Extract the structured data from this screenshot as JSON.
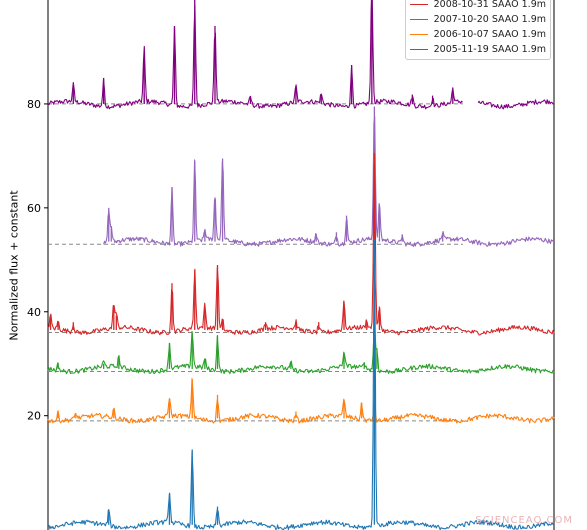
{
  "chart_data": {
    "type": "line",
    "title": "",
    "xlabel": "",
    "ylabel": "Normalized flux + constant",
    "ylim": [
      -2,
      100
    ],
    "yticks": [
      20,
      40,
      60,
      80
    ],
    "grid": false,
    "legend_position": "top-right",
    "series": [
      {
        "name": "",
        "color": "#800080",
        "baseline": 80,
        "x_range": [
          0.0,
          1.0
        ],
        "gap": [
          0.82,
          0.85
        ],
        "peaks": [
          {
            "x": 0.05,
            "h": 3.3
          },
          {
            "x": 0.11,
            "h": 5.0
          },
          {
            "x": 0.19,
            "h": 8.5
          },
          {
            "x": 0.19,
            "h": 2.0
          },
          {
            "x": 0.25,
            "h": 15.0
          },
          {
            "x": 0.29,
            "h": 20.0
          },
          {
            "x": 0.33,
            "h": 15.0
          },
          {
            "x": 0.4,
            "h": 1.5
          },
          {
            "x": 0.49,
            "h": 3.2
          },
          {
            "x": 0.54,
            "h": 1.8
          },
          {
            "x": 0.6,
            "h": 7.5
          },
          {
            "x": 0.64,
            "h": 25.0
          },
          {
            "x": 0.72,
            "h": 1.8
          },
          {
            "x": 0.76,
            "h": 1.6
          },
          {
            "x": 0.8,
            "h": 2.8
          }
        ]
      },
      {
        "name": "",
        "color": "#9467bd",
        "baseline": 53.5,
        "x_range": [
          0.11,
          1.0
        ],
        "peaks": [
          {
            "x": 0.12,
            "h": 6.5
          },
          {
            "x": 0.125,
            "h": 3.0
          },
          {
            "x": 0.245,
            "h": 10.5
          },
          {
            "x": 0.29,
            "h": 15.5
          },
          {
            "x": 0.31,
            "h": 2.0
          },
          {
            "x": 0.33,
            "h": 8.5
          },
          {
            "x": 0.345,
            "h": 16.0
          },
          {
            "x": 0.53,
            "h": 1.5
          },
          {
            "x": 0.57,
            "h": 1.8
          },
          {
            "x": 0.59,
            "h": 5.0
          },
          {
            "x": 0.645,
            "h": 26.0
          },
          {
            "x": 0.655,
            "h": 7.0
          },
          {
            "x": 0.7,
            "h": 1.4
          },
          {
            "x": 0.78,
            "h": 1.3
          }
        ]
      },
      {
        "name": "2008-10-31 SAAO 1.9m",
        "color": "#d62728",
        "baseline": 36.5,
        "x_range": [
          0.0,
          1.0
        ],
        "peaks": [
          {
            "x": 0.005,
            "h": 2.5
          },
          {
            "x": 0.02,
            "h": 1.5
          },
          {
            "x": 0.05,
            "h": 1.5
          },
          {
            "x": 0.13,
            "h": 4.8
          },
          {
            "x": 0.135,
            "h": 2.8
          },
          {
            "x": 0.245,
            "h": 9.0
          },
          {
            "x": 0.29,
            "h": 11.5
          },
          {
            "x": 0.31,
            "h": 4.5
          },
          {
            "x": 0.335,
            "h": 12.5
          },
          {
            "x": 0.345,
            "h": 2.0
          },
          {
            "x": 0.43,
            "h": 1.5
          },
          {
            "x": 0.49,
            "h": 1.5
          },
          {
            "x": 0.535,
            "h": 1.5
          },
          {
            "x": 0.585,
            "h": 5.5
          },
          {
            "x": 0.63,
            "h": 1.5
          },
          {
            "x": 0.645,
            "h": 34.0
          },
          {
            "x": 0.655,
            "h": 4.5
          }
        ]
      },
      {
        "name": "2007-10-20 SAAO 1.9m",
        "color": "#2ca02c",
        "baseline": 29,
        "x_range": [
          0.0,
          1.0
        ],
        "peaks": [
          {
            "x": 0.02,
            "h": 1.2
          },
          {
            "x": 0.11,
            "h": 1.0
          },
          {
            "x": 0.14,
            "h": 2.0
          },
          {
            "x": 0.24,
            "h": 5.0
          },
          {
            "x": 0.285,
            "h": 7.0
          },
          {
            "x": 0.31,
            "h": 2.0
          },
          {
            "x": 0.335,
            "h": 6.5
          },
          {
            "x": 0.48,
            "h": 1.3
          },
          {
            "x": 0.585,
            "h": 3.0
          },
          {
            "x": 0.625,
            "h": 1.3
          },
          {
            "x": 0.645,
            "h": 8.5
          },
          {
            "x": 0.65,
            "h": 4.0
          }
        ]
      },
      {
        "name": "2006-10-07 SAAO 1.9m",
        "color": "#ff7f0e",
        "baseline": 19.5,
        "x_range": [
          0.0,
          1.0
        ],
        "peaks": [
          {
            "x": 0.02,
            "h": 1.5
          },
          {
            "x": 0.055,
            "h": 1.0
          },
          {
            "x": 0.13,
            "h": 1.6
          },
          {
            "x": 0.24,
            "h": 3.8
          },
          {
            "x": 0.285,
            "h": 7.5
          },
          {
            "x": 0.335,
            "h": 4.5
          },
          {
            "x": 0.49,
            "h": 1.3
          },
          {
            "x": 0.585,
            "h": 3.5
          },
          {
            "x": 0.62,
            "h": 3.0
          },
          {
            "x": 0.645,
            "h": 3.5
          }
        ]
      },
      {
        "name": "2005-11-19 SAAO 1.9m",
        "color": "#1f77b4",
        "baseline": -1,
        "x_range": [
          0.0,
          1.0
        ],
        "peaks": [
          {
            "x": 0.12,
            "h": 3.0
          },
          {
            "x": 0.24,
            "h": 6.0
          },
          {
            "x": 0.285,
            "h": 14.5
          },
          {
            "x": 0.335,
            "h": 3.5
          },
          {
            "x": 0.645,
            "h": 55.0
          }
        ]
      }
    ],
    "reference_lines": [
      {
        "y": 80,
        "x_range": [
          0.0,
          0.82
        ]
      },
      {
        "y": 53,
        "x_range": [
          0.0,
          0.82
        ]
      },
      {
        "y": 36,
        "x_range": [
          0.0,
          0.82
        ]
      },
      {
        "y": 28.5,
        "x_range": [
          0.0,
          0.82
        ]
      },
      {
        "y": 19,
        "x_range": [
          0.0,
          0.82
        ]
      }
    ]
  },
  "watermark": "SCIENCEAQ.COM"
}
